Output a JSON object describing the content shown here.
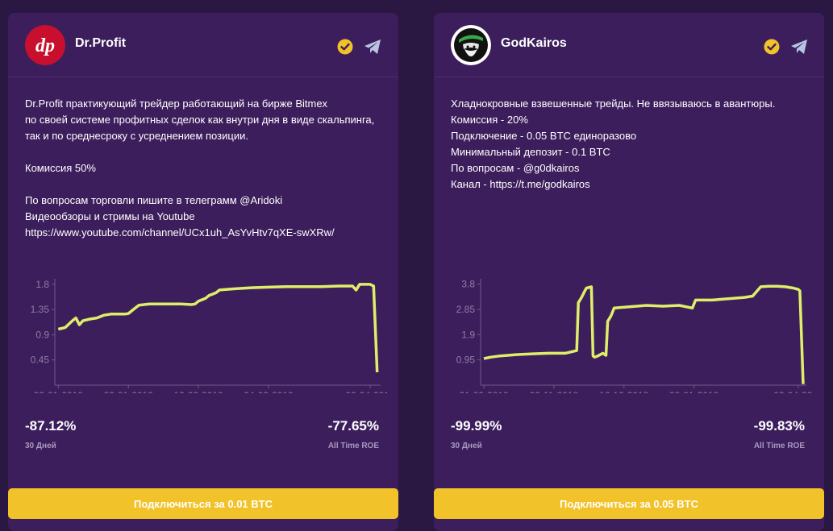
{
  "cards": [
    {
      "name": "Dr.Profit",
      "avatar_text": "dp",
      "description": [
        "Dr.Profit практикующий трейдер работающий на бирже Bitmex",
        "по своей системе профитных сделок как внутри дня в виде скальпинга,",
        "так и по среднесроку с усреднением позиции.",
        "",
        "Комиссия 50%",
        "",
        "По вопросам торговли пишите в телеграмм @Aridoki",
        "Видеообзоры и стримы на Youtube",
        "https://www.youtube.com/channel/UCx1uh_AsYvHtv7qXE-swXRw/"
      ],
      "stat_30d": "-87.12%",
      "stat_30d_label": "30 Дней",
      "stat_roe": "-77.65%",
      "stat_roe_label": "All Time ROE",
      "button_label": "Подключиться за 0.01 BTC"
    },
    {
      "name": "GodKairos",
      "description": [
        "Хладнокровные взвешенные трейды. Не ввязываюсь в авантюры.",
        "Комиссия - 20%",
        "Подключение - 0.05 BTC единоразово",
        "Минимальный депозит - 0.1 BTC",
        "По вопросам - @g0dkairos",
        "Канал - https://t.me/godkairos"
      ],
      "stat_30d": "-99.99%",
      "stat_30d_label": "30 Дней",
      "stat_roe": "-99.83%",
      "stat_roe_label": "All Time ROE",
      "button_label": "Подключиться за 0.05 BTC"
    }
  ],
  "colors": {
    "background": "#2a1742",
    "card": "#3d1e5c",
    "accent": "#f2c22a",
    "series": "#dfee6a",
    "muted_text": "#a899bf"
  },
  "icons": [
    "verified-check-icon",
    "telegram-icon"
  ],
  "chart_data": [
    {
      "type": "line",
      "y_ticks": [
        "0.45",
        "0.9",
        "1.35",
        "1.8"
      ],
      "x_ticks": [
        "03-01-2019",
        "23-01-2019",
        "12-02-2019",
        "04-03-2019",
        "02-04-2019"
      ],
      "x_tick_days": [
        0,
        20,
        40,
        60,
        89
      ],
      "ylim": [
        0,
        1.9
      ],
      "x": [
        0,
        2,
        4,
        5,
        6,
        7,
        9,
        11,
        13,
        15,
        19,
        20,
        22,
        23,
        26,
        30,
        35,
        38,
        39,
        40,
        42,
        43,
        45,
        46,
        50,
        55,
        60,
        65,
        70,
        75,
        80,
        84,
        85,
        86,
        89,
        90,
        91
      ],
      "y": [
        1.0,
        1.03,
        1.15,
        1.2,
        1.08,
        1.15,
        1.18,
        1.2,
        1.25,
        1.27,
        1.27,
        1.28,
        1.38,
        1.43,
        1.45,
        1.45,
        1.45,
        1.44,
        1.45,
        1.5,
        1.55,
        1.6,
        1.65,
        1.7,
        1.72,
        1.74,
        1.75,
        1.76,
        1.76,
        1.76,
        1.77,
        1.77,
        1.7,
        1.8,
        1.8,
        1.77,
        0.23
      ],
      "xlim": [
        -1,
        92
      ]
    },
    {
      "type": "line",
      "y_ticks": [
        "0.95",
        "1.9",
        "2.85",
        "3.8"
      ],
      "x_ticks": [
        "21-09-2018",
        "03-11-2018",
        "16-12-2018",
        "28-01-2019",
        "02-04-2019"
      ],
      "x_tick_days": [
        0,
        43,
        86,
        129,
        193
      ],
      "ylim": [
        0,
        4.0
      ],
      "x": [
        0,
        4,
        10,
        20,
        30,
        40,
        50,
        57,
        58,
        60,
        62,
        63,
        66,
        67,
        68,
        70,
        73,
        75,
        76,
        78,
        80,
        90,
        100,
        110,
        120,
        128,
        130,
        140,
        150,
        160,
        165,
        170,
        175,
        180,
        185,
        190,
        193,
        194,
        196
      ],
      "y": [
        1.0,
        1.05,
        1.1,
        1.15,
        1.18,
        1.2,
        1.2,
        1.3,
        3.1,
        3.3,
        3.55,
        3.65,
        3.7,
        1.1,
        1.05,
        1.1,
        1.2,
        1.12,
        2.4,
        2.6,
        2.9,
        2.95,
        3.0,
        2.97,
        3.0,
        2.9,
        3.2,
        3.2,
        3.25,
        3.3,
        3.35,
        3.7,
        3.72,
        3.72,
        3.7,
        3.65,
        3.6,
        3.55,
        0.04
      ],
      "xlim": [
        -2,
        198
      ]
    }
  ]
}
